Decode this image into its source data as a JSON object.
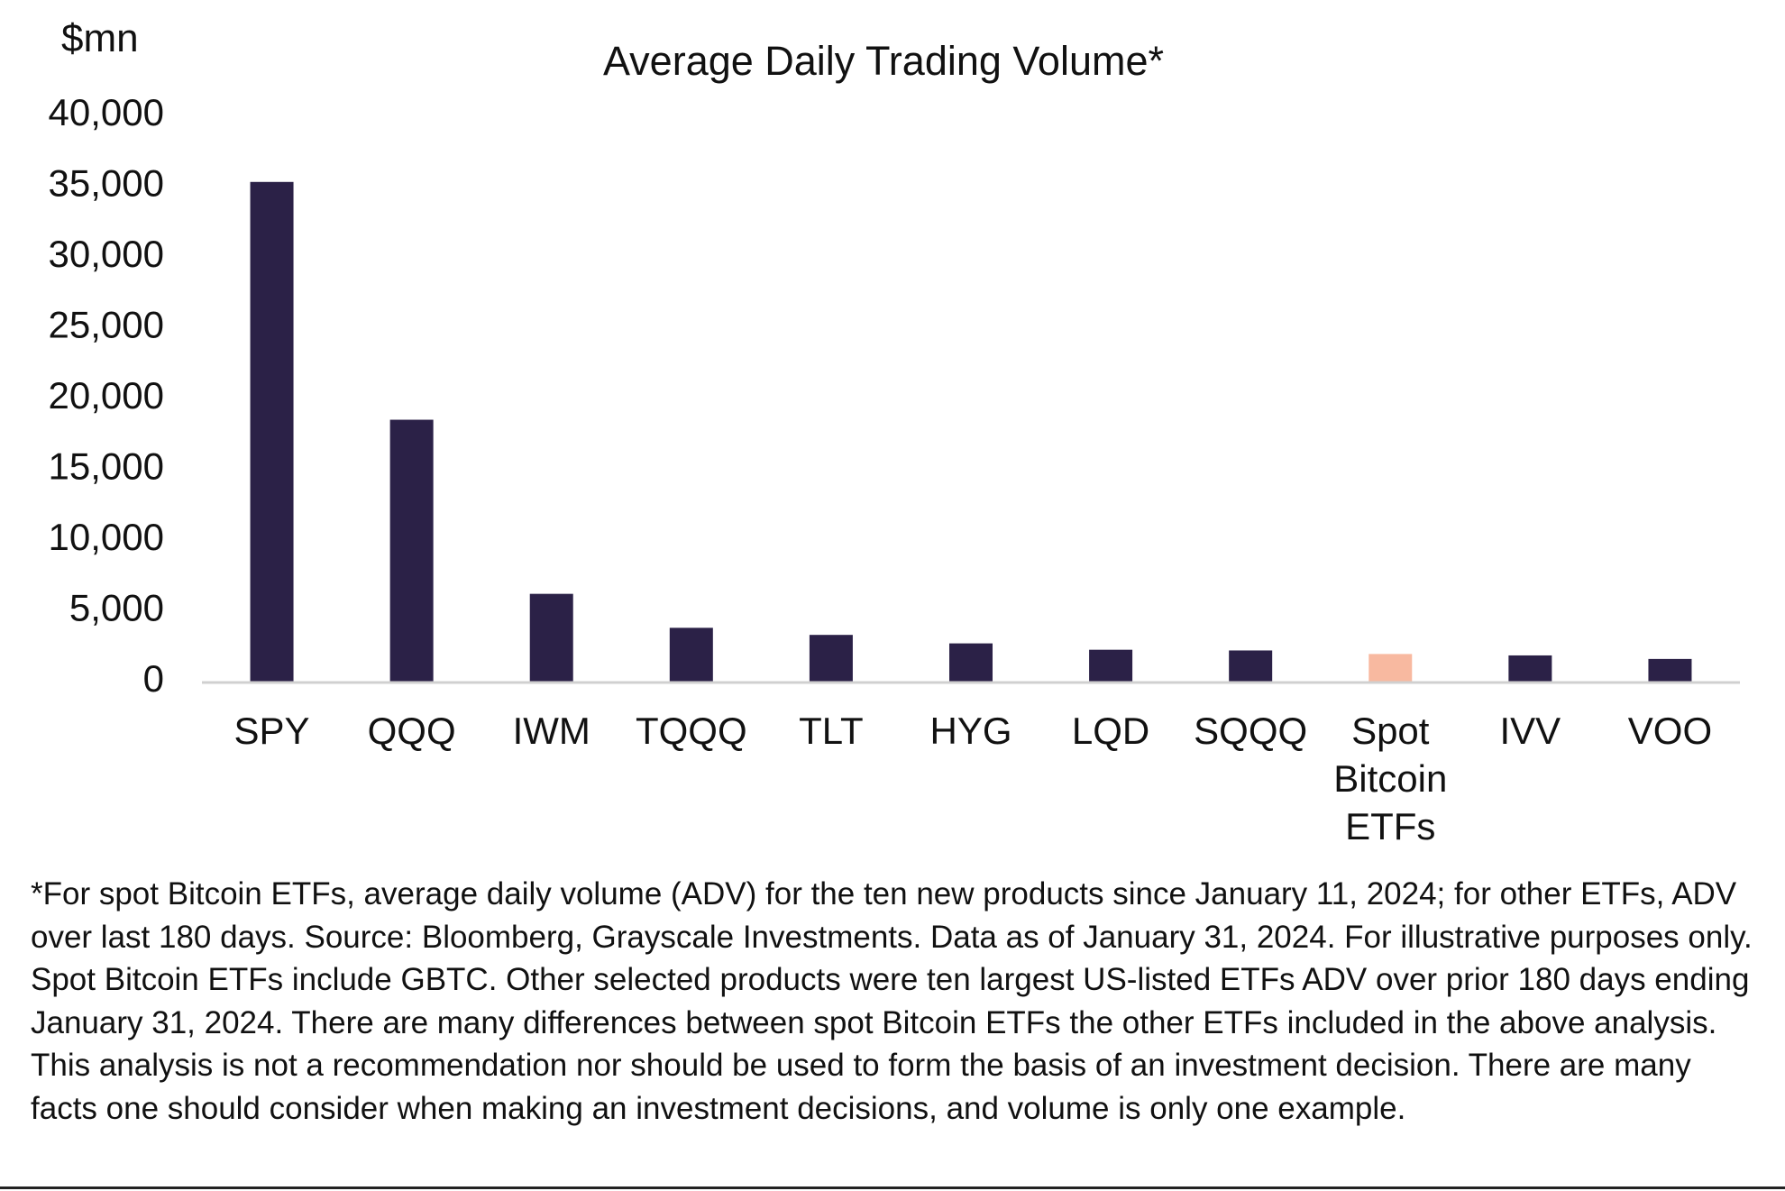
{
  "chart_data": {
    "type": "bar",
    "title": "Average Daily Trading Volume*",
    "ylabel": "$mn",
    "xlabel": "",
    "ylim": [
      0,
      40000
    ],
    "yticks": [
      0,
      5000,
      10000,
      15000,
      20000,
      25000,
      30000,
      35000,
      40000
    ],
    "ytick_labels": [
      "0",
      "5,000",
      "10,000",
      "15,000",
      "20,000",
      "25,000",
      "30,000",
      "35,000",
      "40,000"
    ],
    "categories": [
      "SPY",
      "QQQ",
      "IWM",
      "TQQQ",
      "TLT",
      "HYG",
      "LQD",
      "SQQQ",
      "Spot Bitcoin ETFs",
      "IVV",
      "VOO"
    ],
    "category_label_lines": [
      [
        "SPY"
      ],
      [
        "QQQ"
      ],
      [
        "IWM"
      ],
      [
        "TQQQ"
      ],
      [
        "TLT"
      ],
      [
        "HYG"
      ],
      [
        "LQD"
      ],
      [
        "SQQQ"
      ],
      [
        "Spot",
        "Bitcoin",
        "ETFs"
      ],
      [
        "IVV"
      ],
      [
        "VOO"
      ]
    ],
    "values": [
      35300,
      18500,
      6200,
      3800,
      3300,
      2700,
      2250,
      2200,
      1950,
      1850,
      1600
    ],
    "colors": {
      "default": "#2b2147",
      "highlight": "#f8b9a0",
      "axis": "#d0d0d0"
    },
    "highlight_index": 8,
    "grid": false,
    "legend": "none"
  },
  "footnote": "*For spot Bitcoin ETFs, average daily volume (ADV) for the ten new products since January 11, 2024; for other ETFs, ADV over last 180 days. Source: Bloomberg, Grayscale Investments. Data as of January 31, 2024. For illustrative purposes only. Spot Bitcoin ETFs include GBTC. Other selected products were ten largest US-listed ETFs ADV over prior 180 days ending January 31, 2024. There are many differences between spot Bitcoin ETFs the other ETFs included in the above analysis. This analysis is not a recommendation nor should be used to form the basis of an investment decision. There are many facts one should consider when making an investment decisions, and volume is only one example."
}
